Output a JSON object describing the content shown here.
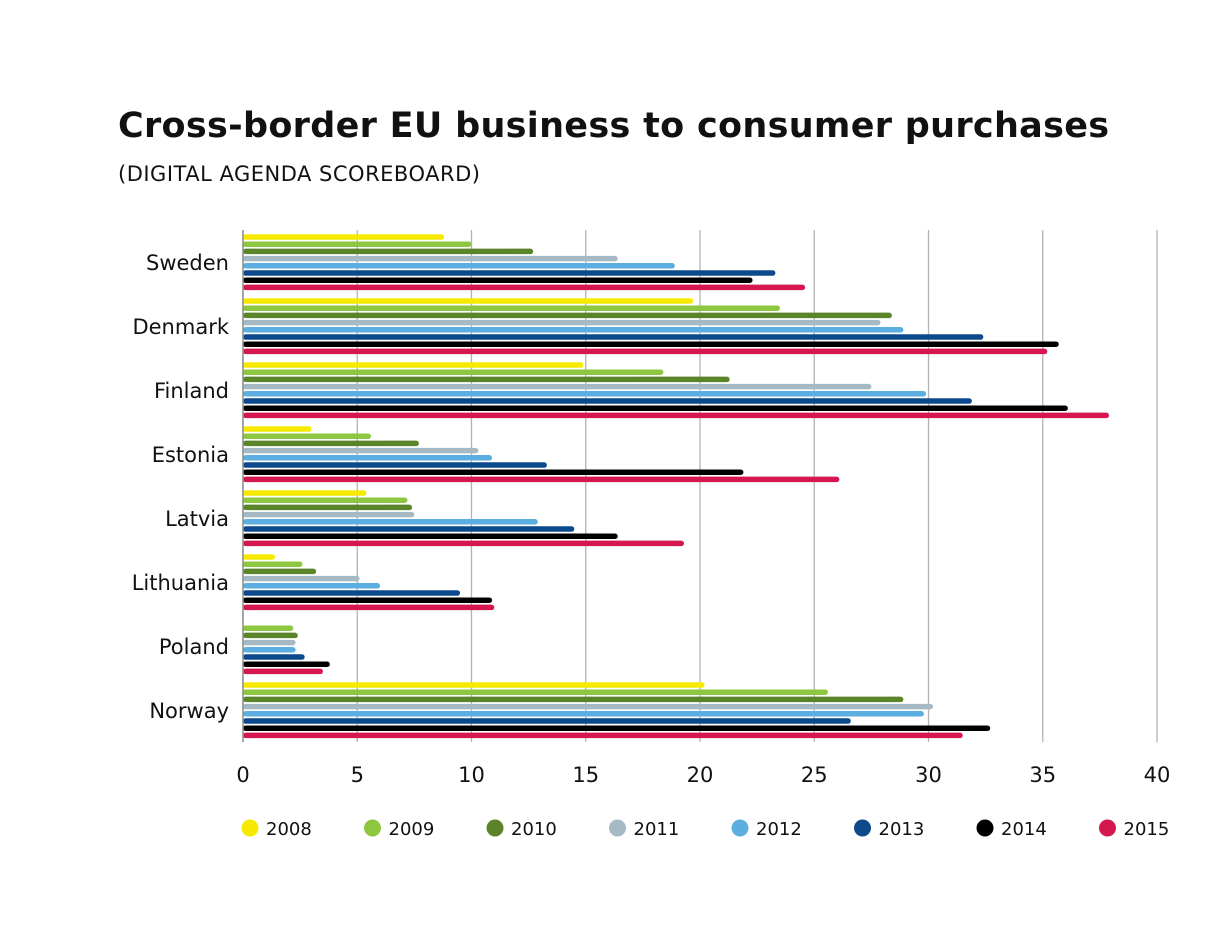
{
  "chart_data": {
    "type": "bar",
    "orientation": "horizontal",
    "title": "Cross-border EU business to consumer purchases",
    "subtitle": "(DIGITAL AGENDA SCOREBOARD)",
    "xlabel": "",
    "ylabel": "",
    "xlim": [
      0,
      40
    ],
    "xticks": [
      0,
      5,
      10,
      15,
      20,
      25,
      30,
      35,
      40
    ],
    "grid": true,
    "legend_position": "bottom",
    "categories": [
      "Sweden",
      "Denmark",
      "Finland",
      "Estonia",
      "Latvia",
      "Lithuania",
      "Poland",
      "Norway"
    ],
    "series": [
      {
        "name": "2008",
        "color": "#f7ea00",
        "values": [
          8.8,
          19.7,
          14.9,
          3.0,
          5.4,
          1.4,
          null,
          20.2
        ]
      },
      {
        "name": "2009",
        "color": "#8dc63f",
        "values": [
          10.0,
          23.5,
          18.4,
          5.6,
          7.2,
          2.6,
          2.2,
          25.6
        ]
      },
      {
        "name": "2010",
        "color": "#5a8427",
        "values": [
          12.7,
          28.4,
          21.3,
          7.7,
          7.4,
          3.2,
          2.4,
          28.9
        ]
      },
      {
        "name": "2011",
        "color": "#a8b9c6",
        "values": [
          16.4,
          27.9,
          27.5,
          10.3,
          7.5,
          5.1,
          2.3,
          30.2
        ]
      },
      {
        "name": "2012",
        "color": "#5aaee0",
        "values": [
          18.9,
          28.9,
          29.9,
          10.9,
          12.9,
          6.0,
          2.3,
          29.8
        ]
      },
      {
        "name": "2013",
        "color": "#0c4a8c",
        "values": [
          23.3,
          32.4,
          31.9,
          13.3,
          14.5,
          9.5,
          2.7,
          26.6
        ]
      },
      {
        "name": "2014",
        "color": "#000000",
        "values": [
          22.3,
          35.7,
          36.1,
          21.9,
          16.4,
          10.9,
          3.8,
          32.7
        ]
      },
      {
        "name": "2015",
        "color": "#d4174f",
        "values": [
          24.6,
          35.2,
          37.9,
          26.1,
          19.3,
          11.0,
          3.5,
          31.5
        ]
      }
    ]
  }
}
